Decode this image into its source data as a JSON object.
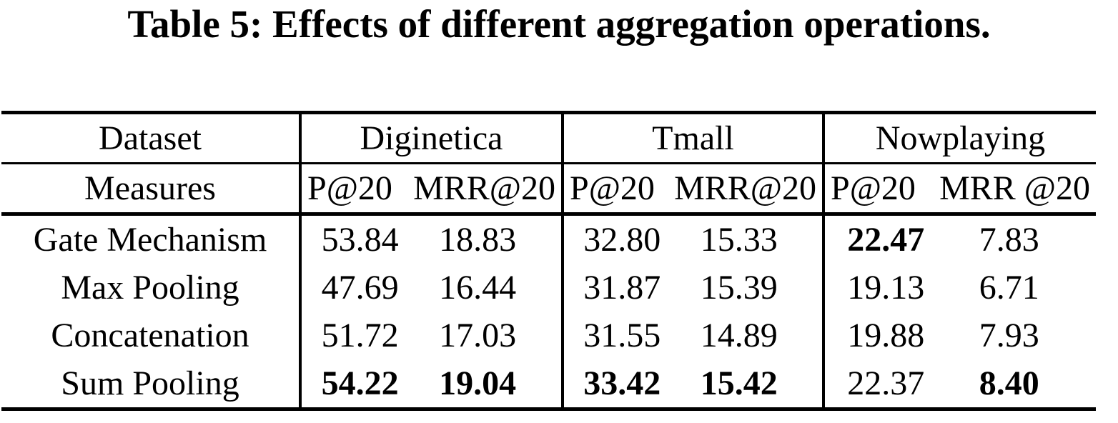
{
  "page_title": "Table 5: Effects of different aggregation operations.",
  "colors": {
    "text": "#000000",
    "background": "#ffffff",
    "rules": "#000000"
  },
  "table": {
    "corner": {
      "dataset_label": "Dataset",
      "measures_label": "Measures"
    },
    "groups": [
      {
        "name": "Diginetica",
        "p_label": "P@20",
        "m_label": "MRR@20"
      },
      {
        "name": "Tmall",
        "p_label": "P@20",
        "m_label": "MRR@20"
      },
      {
        "name": "Nowplaying",
        "p_label": "P@20",
        "m_label": "MRR @20"
      }
    ],
    "rows": [
      {
        "label": "Gate Mechanism",
        "cells": [
          {
            "p": "53.84",
            "p_bold": false,
            "m": "18.83",
            "m_bold": false
          },
          {
            "p": "32.80",
            "p_bold": false,
            "m": "15.33",
            "m_bold": false
          },
          {
            "p": "22.47",
            "p_bold": true,
            "m": "7.83",
            "m_bold": false
          }
        ]
      },
      {
        "label": "Max Pooling",
        "cells": [
          {
            "p": "47.69",
            "p_bold": false,
            "m": "16.44",
            "m_bold": false
          },
          {
            "p": "31.87",
            "p_bold": false,
            "m": "15.39",
            "m_bold": false
          },
          {
            "p": "19.13",
            "p_bold": false,
            "m": "6.71",
            "m_bold": false
          }
        ]
      },
      {
        "label": "Concatenation",
        "cells": [
          {
            "p": "51.72",
            "p_bold": false,
            "m": "17.03",
            "m_bold": false
          },
          {
            "p": "31.55",
            "p_bold": false,
            "m": "14.89",
            "m_bold": false
          },
          {
            "p": "19.88",
            "p_bold": false,
            "m": "7.93",
            "m_bold": false
          }
        ]
      },
      {
        "label": "Sum Pooling",
        "cells": [
          {
            "p": "54.22",
            "p_bold": true,
            "m": "19.04",
            "m_bold": true
          },
          {
            "p": "33.42",
            "p_bold": true,
            "m": "15.42",
            "m_bold": true
          },
          {
            "p": "22.37",
            "p_bold": false,
            "m": "8.40",
            "m_bold": true
          }
        ]
      }
    ]
  }
}
